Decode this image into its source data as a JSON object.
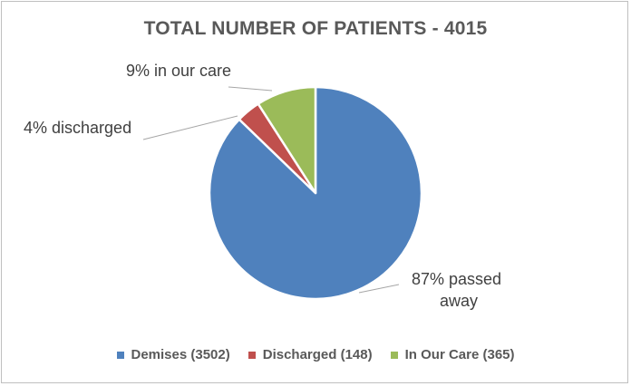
{
  "chart_data": {
    "type": "pie",
    "title": "TOTAL NUMBER OF PATIENTS - 4015",
    "slices": [
      {
        "legend": "Demises (3502)",
        "value": 3502,
        "label_lines": [
          "87% passed",
          "away"
        ],
        "color": "#4f81bd"
      },
      {
        "legend": "Discharged (148)",
        "value": 148,
        "label_lines": [
          "4% discharged"
        ],
        "color": "#c0504d"
      },
      {
        "legend": "In Our Care (365)",
        "value": 365,
        "label_lines": [
          "9% in our care"
        ],
        "color": "#9bbb59"
      }
    ],
    "legend_position": "bottom"
  }
}
